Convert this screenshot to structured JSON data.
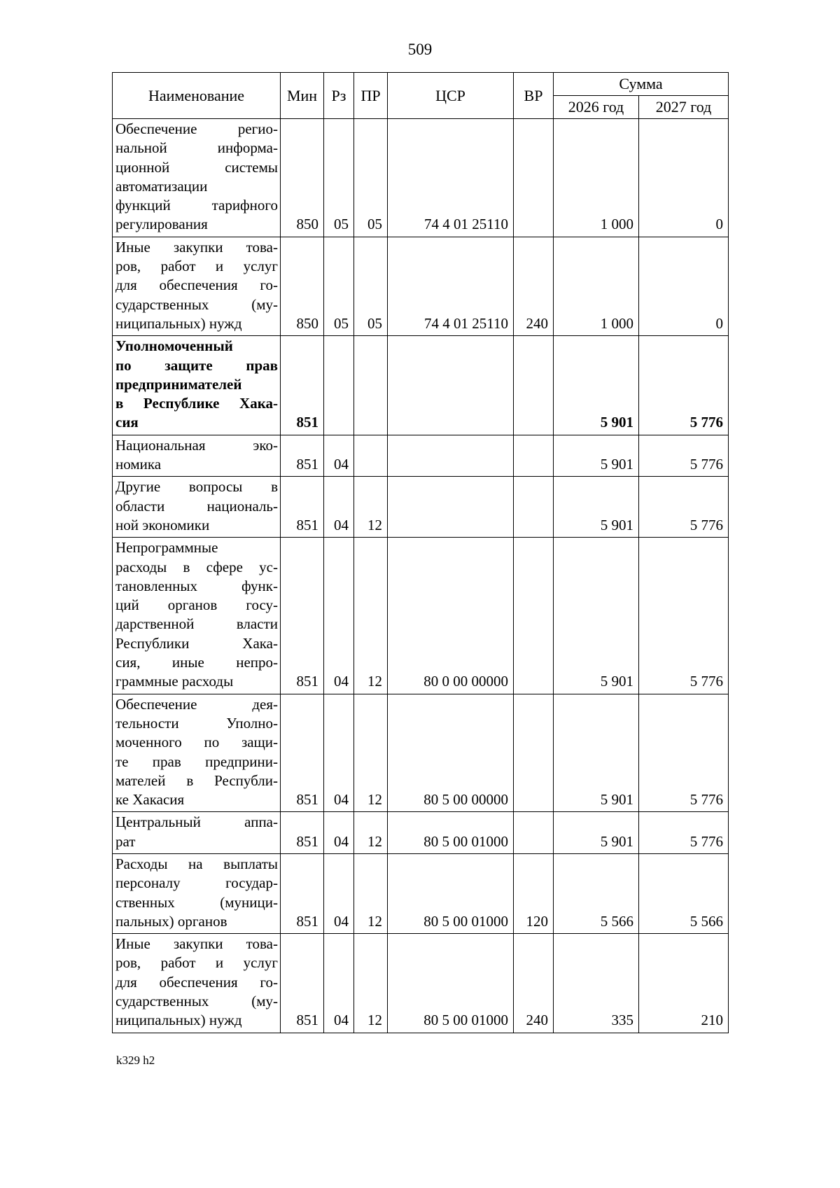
{
  "page": {
    "number": "509",
    "footer": "k329 h2"
  },
  "table": {
    "headers": {
      "name": "Наименование",
      "min": "Мин",
      "rz": "Рз",
      "pr": "ПР",
      "csr": "ЦСР",
      "vr": "ВР",
      "sum": "Сумма",
      "y2026": "2026 год",
      "y2027": "2027 год"
    },
    "rows": [
      {
        "name": "Обеспечение регио-\nнальной информа-\nционной системы\nавтоматизации\nфункций тарифного\nрегулирования",
        "min": "850",
        "rz": "05",
        "pr": "05",
        "csr": "74 4 01 25110",
        "vr": "",
        "y2026": "1 000",
        "y2027": "0",
        "bold": false
      },
      {
        "name": "Иные закупки това-\nров, работ и услуг\nдля обеспечения го-\nсударственных (му-\nниципальных) нужд",
        "min": "850",
        "rz": "05",
        "pr": "05",
        "csr": "74 4 01 25110",
        "vr": "240",
        "y2026": "1 000",
        "y2027": "0",
        "bold": false
      },
      {
        "name": "Уполномоченный\nпо защите прав\nпредпринимателей\nв Республике Хака-\nсия",
        "min": "851",
        "rz": "",
        "pr": "",
        "csr": "",
        "vr": "",
        "y2026": "5 901",
        "y2027": "5 776",
        "bold": true
      },
      {
        "name": "Национальная эко-\nномика",
        "min": "851",
        "rz": "04",
        "pr": "",
        "csr": "",
        "vr": "",
        "y2026": "5 901",
        "y2027": "5 776",
        "bold": false
      },
      {
        "name": "Другие вопросы в\nобласти националь-\nной экономики",
        "min": "851",
        "rz": "04",
        "pr": "12",
        "csr": "",
        "vr": "",
        "y2026": "5 901",
        "y2027": "5 776",
        "bold": false
      },
      {
        "name": "Непрограммные\nрасходы в сфере ус-\nтановленных функ-\nций органов госу-\nдарственной власти\nРеспублики Хака-\nсия, иные непро-\nграммные расходы",
        "min": "851",
        "rz": "04",
        "pr": "12",
        "csr": "80 0 00 00000",
        "vr": "",
        "y2026": "5 901",
        "y2027": "5 776",
        "bold": false
      },
      {
        "name": "Обеспечение дея-\nтельности Уполно-\nмоченного по защи-\nте прав предприни-\nмателей в Республи-\nке Хакасия",
        "min": "851",
        "rz": "04",
        "pr": "12",
        "csr": "80 5 00 00000",
        "vr": "",
        "y2026": "5 901",
        "y2027": "5 776",
        "bold": false
      },
      {
        "name": "Центральный аппа-\nрат",
        "min": "851",
        "rz": "04",
        "pr": "12",
        "csr": "80 5 00 01000",
        "vr": "",
        "y2026": "5 901",
        "y2027": "5 776",
        "bold": false
      },
      {
        "name": "Расходы на выплаты\nперсоналу государ-\nственных (муници-\nпальных) органов",
        "min": "851",
        "rz": "04",
        "pr": "12",
        "csr": "80 5 00 01000",
        "vr": "120",
        "y2026": "5 566",
        "y2027": "5 566",
        "bold": false
      },
      {
        "name": "Иные закупки това-\nров, работ и услуг\nдля обеспечения го-\nсударственных (му-\nниципальных) нужд",
        "min": "851",
        "rz": "04",
        "pr": "12",
        "csr": "80 5 00 01000",
        "vr": "240",
        "y2026": "335",
        "y2027": "210",
        "bold": false
      }
    ]
  }
}
